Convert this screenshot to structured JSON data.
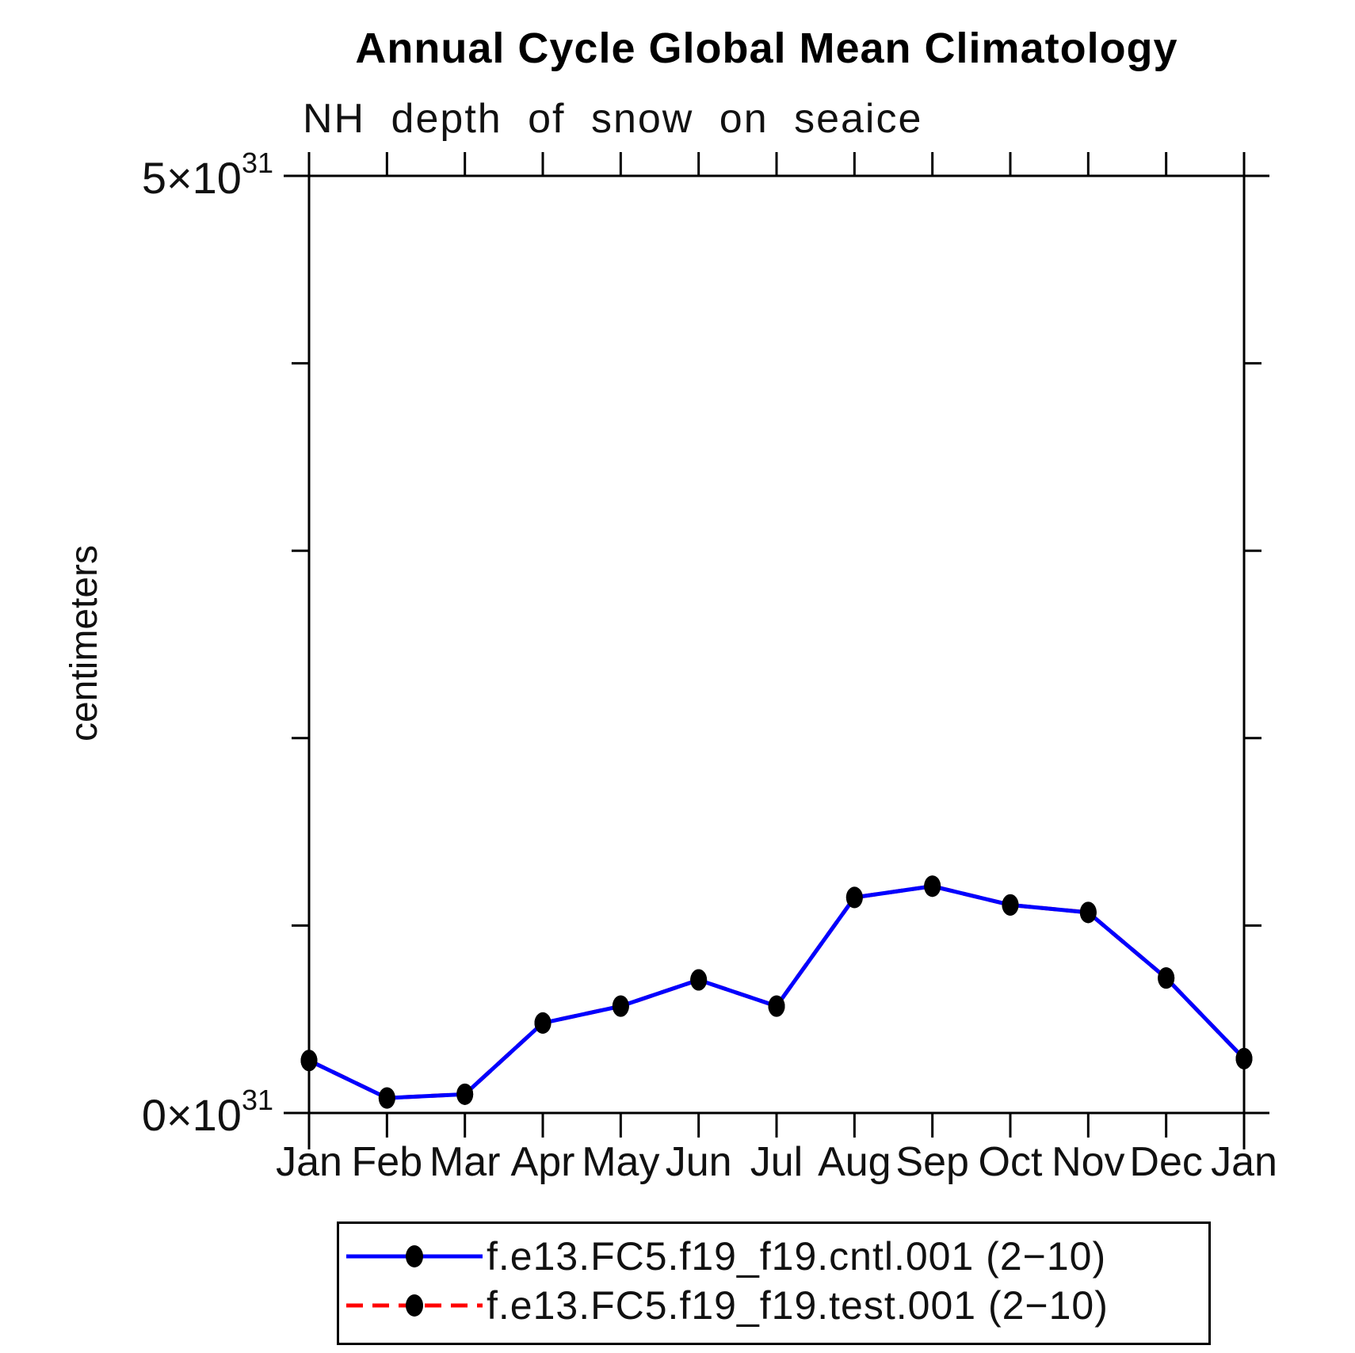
{
  "titles": {
    "main": "Annual Cycle Global Mean Climatology",
    "sub": "NH depth of snow on seaice"
  },
  "axes": {
    "y": {
      "label": "centimeters",
      "tick_top": {
        "mantissa": "5×10",
        "exponent": "31",
        "text": "5×10³¹"
      },
      "tick_bottom": {
        "mantissa": "0×10",
        "exponent": "31",
        "text": "0×10³¹"
      }
    },
    "x": {
      "months": [
        "Jan",
        "Feb",
        "Mar",
        "Apr",
        "May",
        "Jun",
        "Jul",
        "Aug",
        "Sep",
        "Oct",
        "Nov",
        "Dec",
        "Jan"
      ]
    }
  },
  "chart_data": {
    "type": "line",
    "title": "Annual Cycle Global Mean Climatology",
    "subtitle": "NH depth of snow on seaice",
    "ylabel": "centimeters",
    "x_categories": [
      "Jan",
      "Feb",
      "Mar",
      "Apr",
      "May",
      "Jun",
      "Jul",
      "Aug",
      "Sep",
      "Oct",
      "Nov",
      "Dec",
      "Jan"
    ],
    "ylim_1e31": [
      0,
      5
    ],
    "y_major_ticks_1e31": [
      0,
      1,
      2,
      3,
      4,
      5
    ],
    "y_tick_labels": [
      "0×10³¹",
      "5×10³¹"
    ],
    "grid": false,
    "legend_position": "bottom",
    "series": [
      {
        "name": "f.e13.FC5.f19_f19.cntl.001 (2−10)",
        "color": "#0000FF",
        "style": "solid",
        "marker": "black-filled-circle",
        "values_1e31": [
          0.28,
          0.08,
          0.1,
          0.48,
          0.57,
          0.71,
          0.57,
          1.15,
          1.21,
          1.11,
          1.07,
          0.72,
          0.29
        ]
      },
      {
        "name": "f.e13.FC5.f19_f19.test.001 (2−10)",
        "color": "#FF0000",
        "style": "dashed",
        "marker": "black-filled-circle",
        "values_1e31": [
          0.28,
          0.08,
          0.1,
          0.48,
          0.57,
          0.71,
          0.57,
          1.15,
          1.21,
          1.11,
          1.07,
          0.72,
          0.29
        ]
      }
    ]
  },
  "legend": {
    "entries": [
      {
        "label": "f.e13.FC5.f19_f19.cntl.001 (2−10)"
      },
      {
        "label": "f.e13.FC5.f19_f19.test.001 (2−10)"
      }
    ]
  },
  "colors": {
    "cntl_line": "#0000FF",
    "test_line": "#FF0000",
    "marker": "#000000",
    "axis": "#000000",
    "background": "#FFFFFF"
  }
}
